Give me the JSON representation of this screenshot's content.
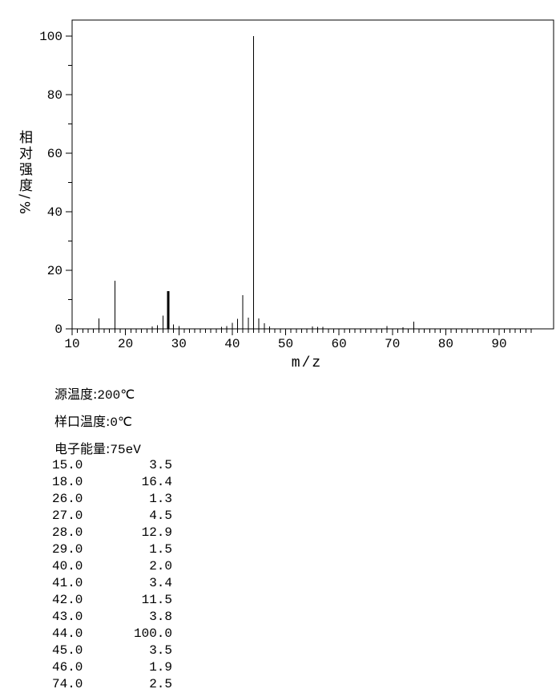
{
  "chart_data": {
    "type": "bar",
    "subtype": "mass-spectrum-stick-plot",
    "title": "",
    "xlabel": "m/z",
    "ylabel": "相对强度/%",
    "ylabel_cjk": "相对强度",
    "ylabel_unit": "/%",
    "xlim": [
      10,
      96.5
    ],
    "ylim": [
      0,
      105
    ],
    "grid": false,
    "x_major_ticks": [
      10,
      20,
      30,
      40,
      50,
      60,
      70,
      80,
      90
    ],
    "x_minor_step": 1,
    "y_major_ticks": [
      0,
      20,
      40,
      60,
      80,
      100
    ],
    "y_minor_step": 10,
    "peaks": [
      {
        "mz": 15.0,
        "intensity": 3.5
      },
      {
        "mz": 18.0,
        "intensity": 16.4
      },
      {
        "mz": 26.0,
        "intensity": 1.3
      },
      {
        "mz": 27.0,
        "intensity": 4.5
      },
      {
        "mz": 28.0,
        "intensity": 12.9,
        "width": 3
      },
      {
        "mz": 29.0,
        "intensity": 1.5
      },
      {
        "mz": 40.0,
        "intensity": 2.0
      },
      {
        "mz": 41.0,
        "intensity": 3.4
      },
      {
        "mz": 42.0,
        "intensity": 11.5
      },
      {
        "mz": 43.0,
        "intensity": 3.8
      },
      {
        "mz": 44.0,
        "intensity": 100.0
      },
      {
        "mz": 45.0,
        "intensity": 3.5
      },
      {
        "mz": 46.0,
        "intensity": 1.9
      },
      {
        "mz": 74.0,
        "intensity": 2.5
      }
    ],
    "minor_unlabeled_peaks_estimated": [
      {
        "mz": 25.0,
        "intensity": 0.8
      },
      {
        "mz": 30.0,
        "intensity": 0.9
      },
      {
        "mz": 38.0,
        "intensity": 0.7
      },
      {
        "mz": 39.0,
        "intensity": 1.0
      },
      {
        "mz": 47.0,
        "intensity": 0.8
      },
      {
        "mz": 55.0,
        "intensity": 0.8
      },
      {
        "mz": 56.0,
        "intensity": 0.7
      },
      {
        "mz": 57.0,
        "intensity": 0.7
      },
      {
        "mz": 69.0,
        "intensity": 1.0
      },
      {
        "mz": 72.0,
        "intensity": 0.6
      }
    ],
    "colors": {
      "foreground": "#000000",
      "background": "#ffffff"
    }
  },
  "info": {
    "lines": [
      {
        "label": "源温度:",
        "value": "200℃"
      },
      {
        "label": "样口温度:",
        "value": "0℃"
      },
      {
        "label": "电子能量:",
        "value": "75eV"
      }
    ]
  },
  "peak_table": {
    "rows": [
      [
        "15.0",
        "3.5"
      ],
      [
        "18.0",
        "16.4"
      ],
      [
        "26.0",
        "1.3"
      ],
      [
        "27.0",
        "4.5"
      ],
      [
        "28.0",
        "12.9"
      ],
      [
        "29.0",
        "1.5"
      ],
      [
        "40.0",
        "2.0"
      ],
      [
        "41.0",
        "3.4"
      ],
      [
        "42.0",
        "11.5"
      ],
      [
        "43.0",
        "3.8"
      ],
      [
        "44.0",
        "100.0"
      ],
      [
        "45.0",
        "3.5"
      ],
      [
        "46.0",
        "1.9"
      ],
      [
        "74.0",
        "2.5"
      ]
    ]
  }
}
